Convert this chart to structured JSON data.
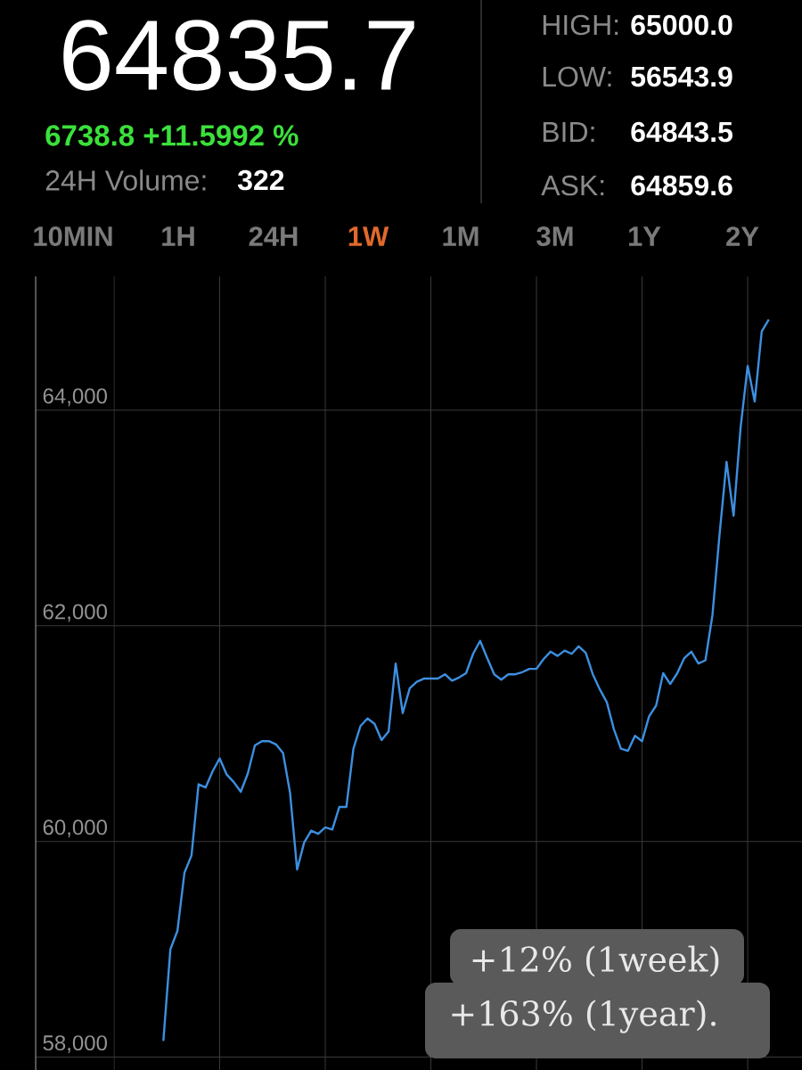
{
  "chart_data": {
    "type": "line",
    "title": "64835.7",
    "subtitle": "6738.8 +11.5992 %",
    "annotations": [
      "24H Volume:",
      "322",
      "HIGH:",
      "65000.0",
      "LOW:",
      "56543.9",
      "BID:",
      "64843.5",
      "ASK:",
      "64859.6",
      "10MIN",
      "1H",
      "24H",
      "1W",
      "1M",
      "3M",
      "1Y",
      "2Y",
      "+12% (1week)",
      "+163% (1year)."
    ],
    "categories": [
      null,
      null,
      null,
      null,
      null,
      null,
      null,
      null,
      null,
      null,
      null,
      null,
      null,
      null,
      null,
      null,
      null,
      null,
      null,
      null,
      null,
      null,
      null,
      null,
      null,
      null,
      null,
      null,
      null,
      null,
      null,
      null,
      null,
      null,
      null,
      null,
      null,
      null,
      null,
      null,
      null,
      null,
      null,
      null,
      null,
      null,
      null,
      null,
      null,
      null,
      null,
      null,
      null,
      null,
      null,
      null,
      null,
      null,
      null,
      null,
      null,
      null,
      null,
      null,
      null,
      null,
      null,
      null,
      null,
      null,
      null,
      null,
      null,
      null,
      null,
      null,
      null,
      null,
      null,
      null,
      null,
      null,
      null,
      null,
      null,
      null,
      null,
      null,
      null,
      null,
      null,
      null,
      null,
      null,
      null,
      null,
      null,
      null,
      null,
      null,
      null,
      null,
      null,
      null,
      null,
      null,
      null,
      null,
      null
    ],
    "values": [
      null,
      null,
      null,
      null,
      null,
      null,
      null,
      null,
      null,
      null,
      null,
      null,
      null,
      null,
      null,
      null,
      null,
      null,
      58150,
      59000,
      59170,
      59710,
      59870,
      60530,
      60500,
      60650,
      60770,
      60620,
      60550,
      60460,
      60630,
      60890,
      60930,
      60930,
      60900,
      60820,
      60450,
      59740,
      59990,
      60100,
      60070,
      60130,
      60110,
      60320,
      60320,
      60860,
      61070,
      61140,
      61090,
      60940,
      61020,
      61650,
      61190,
      61420,
      61480,
      61510,
      61510,
      61510,
      61550,
      61490,
      61520,
      61560,
      61740,
      61860,
      61700,
      61550,
      61500,
      61550,
      61550,
      61570,
      61600,
      61600,
      61690,
      61760,
      61720,
      61770,
      61740,
      61810,
      61750,
      61550,
      61410,
      61290,
      61040,
      60860,
      60840,
      60980,
      60930,
      61160,
      61260,
      61560,
      61460,
      61560,
      61700,
      61760,
      61650,
      61680,
      62100,
      62840,
      63520,
      63020,
      63840,
      64410,
      64080,
      64730,
      64840,
      null,
      null,
      null,
      null
    ],
    "color": "#3d8fe0",
    "ylim": [
      57880,
      65240
    ],
    "yticks": [
      {
        "value": 58000,
        "label": "58,000"
      },
      {
        "value": 60000,
        "label": "60,000"
      },
      {
        "value": 62000,
        "label": "62,000"
      },
      {
        "value": 64000,
        "label": "64,000"
      }
    ],
    "grid": true,
    "tick_labels": "y"
  }
}
